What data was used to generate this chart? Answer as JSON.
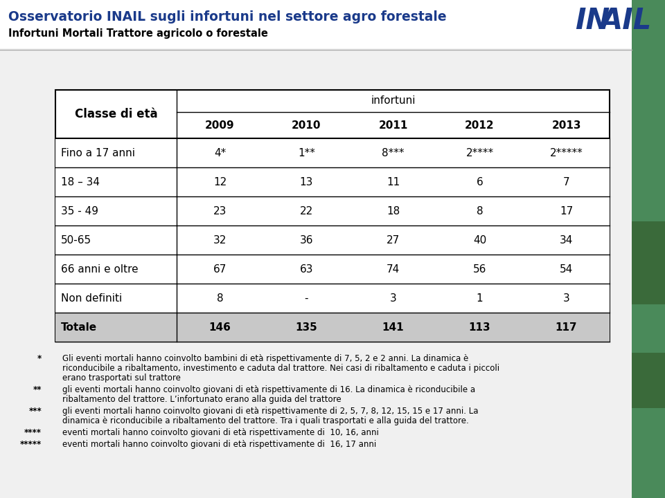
{
  "title_main": "Osservatorio INAIL sugli infortuni nel settore agro forestale",
  "title_sub": "Infortuni Mortali Trattore agricolo o forestale",
  "header_row": [
    "Classe di età",
    "2009",
    "2010",
    "2011",
    "2012",
    "2013"
  ],
  "subheader": "infortuni",
  "rows": [
    [
      "Fino a 17 anni",
      "4*",
      "1**",
      "8***",
      "2****",
      "2*****"
    ],
    [
      "18 – 34",
      "12",
      "13",
      "11",
      "6",
      "7"
    ],
    [
      "35 - 49",
      "23",
      "22",
      "18",
      "8",
      "17"
    ],
    [
      "50-65",
      "32",
      "36",
      "27",
      "40",
      "34"
    ],
    [
      "66 anni e oltre",
      "67",
      "63",
      "74",
      "56",
      "54"
    ],
    [
      "Non definiti",
      "8",
      "-",
      "3",
      "1",
      "3"
    ],
    [
      "Totale",
      "146",
      "135",
      "141",
      "113",
      "117"
    ]
  ],
  "footnotes": [
    [
      "*",
      "Gli eventi mortali hanno coinvolto bambini di età rispettivamente di 7, 5, 2 e 2 anni. La dinamica è\nriconducibile a ribaltamento, investimento e caduta dal trattore. Nei casi di ribaltamento e caduta i piccoli\nerano trasportati sul trattore"
    ],
    [
      "**",
      "gli eventi mortali hanno coinvolto giovani di età rispettivamente di 16. La dinamica è riconducibile a\nribaltamento del trattore. L’infortunato erano alla guida del trattore"
    ],
    [
      "***",
      "gli eventi mortali hanno coinvolto giovani di età rispettivamente di 2, 5, 7, 8, 12, 15, 15 e 17 anni. La\ndinamica è riconducibile a ribaltamento del trattore. Tra i quali trasportati e alla guida del trattore."
    ],
    [
      "****",
      "eventi mortali hanno coinvolto giovani di età rispettivamente di  10, 16, anni"
    ],
    [
      "*****",
      "eventi mortali hanno coinvolto giovani di età rispettivamente di  16, 17 anni"
    ]
  ],
  "title_color": "#1a3a8a",
  "subtitle_color": "#000000",
  "table_border_color": "#000000",
  "background_color": "#f0f0f0",
  "inail_color": "#1a3a8a",
  "green_stripe_color": "#4a8a5a",
  "white_panel_color": "#ffffff",
  "gray_row_color": "#c8c8c8"
}
